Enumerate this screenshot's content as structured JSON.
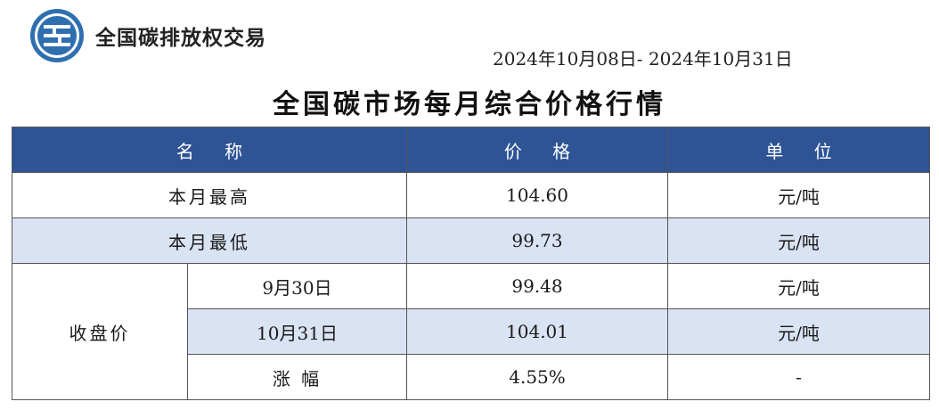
{
  "header": {
    "org_name": "全国碳排放权交易",
    "date_range": "2024年10月08日- 2024年10月31日",
    "title": "全国碳市场每月综合价格行情"
  },
  "table": {
    "columns": [
      "名 称",
      "价 格",
      "单 位"
    ],
    "rows": [
      {
        "name": "本月最高",
        "price": "104.60",
        "unit": "元/吨"
      },
      {
        "name": "本月最低",
        "price": "99.73",
        "unit": "元/吨"
      }
    ],
    "closing_group_label": "收盘价",
    "closing_rows": [
      {
        "name": "9月30日",
        "price": "99.48",
        "unit": "元/吨"
      },
      {
        "name": "10月31日",
        "price": "104.01",
        "unit": "元/吨"
      },
      {
        "name": "涨 幅",
        "price": "4.55%",
        "unit": "-"
      }
    ]
  },
  "colors": {
    "header_bg": "#2e5496",
    "shade_row": "#dae3f3"
  },
  "icons": {
    "logo": "carbon-exchange-emblem"
  }
}
